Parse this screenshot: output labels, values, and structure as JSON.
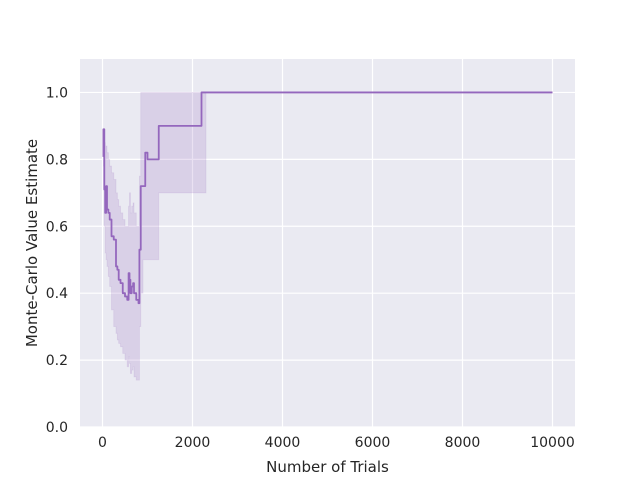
{
  "chart_data": {
    "type": "line",
    "title": "",
    "xlabel": "Number of Trials",
    "ylabel": "Monte-Carlo Value Estimate",
    "xlim": [
      -500,
      10500
    ],
    "ylim": [
      0.0,
      1.1
    ],
    "xticks": [
      0,
      2000,
      4000,
      6000,
      8000,
      10000
    ],
    "xtick_labels": [
      "0",
      "2000",
      "4000",
      "6000",
      "8000",
      "10000"
    ],
    "yticks": [
      0.0,
      0.2,
      0.4,
      0.6,
      0.8,
      1.0
    ],
    "ytick_labels": [
      "0.0",
      "0.2",
      "0.4",
      "0.6",
      "0.8",
      "1.0"
    ],
    "grid": true,
    "legend": "none",
    "colors": {
      "line": "#9467bd",
      "band": "#9467bd",
      "background": "#eaeaf2",
      "grid": "#ffffff"
    },
    "series": [
      {
        "name": "",
        "x": [
          0,
          20,
          40,
          60,
          80,
          100,
          130,
          160,
          200,
          250,
          300,
          330,
          360,
          400,
          450,
          500,
          550,
          580,
          600,
          620,
          650,
          680,
          700,
          750,
          800,
          820,
          850,
          900,
          950,
          1000,
          1200,
          1250,
          2000,
          2200,
          2300,
          4000,
          6000,
          8000,
          10000
        ],
        "y": [
          0.81,
          0.89,
          0.71,
          0.64,
          0.72,
          0.65,
          0.64,
          0.62,
          0.57,
          0.56,
          0.48,
          0.47,
          0.44,
          0.43,
          0.4,
          0.39,
          0.38,
          0.46,
          0.44,
          0.4,
          0.42,
          0.43,
          0.4,
          0.38,
          0.37,
          0.53,
          0.72,
          0.72,
          0.82,
          0.8,
          0.8,
          0.9,
          0.9,
          1.0,
          1.0,
          1.0,
          1.0,
          1.0,
          1.0
        ],
        "lower": [
          0.81,
          0.78,
          0.6,
          0.52,
          0.5,
          0.48,
          0.45,
          0.42,
          0.35,
          0.3,
          0.28,
          0.26,
          0.25,
          0.24,
          0.22,
          0.2,
          0.18,
          0.21,
          0.19,
          0.16,
          0.17,
          0.18,
          0.15,
          0.14,
          0.14,
          0.3,
          0.4,
          0.5,
          0.5,
          0.5,
          0.5,
          0.7,
          0.7,
          0.7,
          1.0,
          1.0,
          1.0,
          1.0,
          1.0
        ],
        "upper": [
          0.81,
          0.89,
          0.85,
          0.8,
          0.84,
          0.82,
          0.8,
          0.78,
          0.76,
          0.74,
          0.7,
          0.68,
          0.66,
          0.64,
          0.62,
          0.6,
          0.6,
          0.66,
          0.7,
          0.64,
          0.66,
          0.67,
          0.64,
          0.6,
          0.6,
          0.75,
          1.0,
          1.0,
          1.0,
          1.0,
          1.0,
          1.0,
          1.0,
          1.0,
          1.0,
          1.0,
          1.0,
          1.0,
          1.0
        ]
      }
    ]
  }
}
